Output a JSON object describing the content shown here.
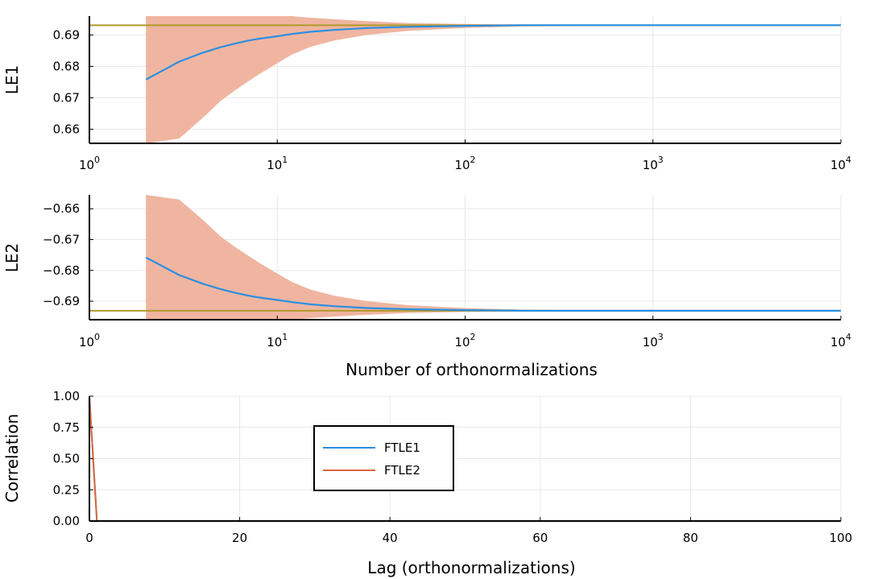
{
  "colors": {
    "mean_line": "#2a8fe3",
    "band": "#efb5a0",
    "reference": "#b09a2a",
    "ftle1": "#2a8fe3",
    "ftle2": "#d9683c",
    "grid": "#e8e8e8",
    "axis": "#000000"
  },
  "chart_data": [
    {
      "id": "le1",
      "type": "line",
      "ylabel": "LE1",
      "xlabel": "",
      "xscale": "log10",
      "xlim": [
        1,
        10000
      ],
      "ylim": [
        0.6555,
        0.696
      ],
      "xtick_values": [
        1,
        10,
        100,
        1000,
        10000
      ],
      "xtick_labels": [
        {
          "base": "10",
          "exp": "0"
        },
        {
          "base": "10",
          "exp": "1"
        },
        {
          "base": "10",
          "exp": "2"
        },
        {
          "base": "10",
          "exp": "3"
        },
        {
          "base": "10",
          "exp": "4"
        }
      ],
      "ytick_values": [
        0.66,
        0.67,
        0.68,
        0.69
      ],
      "ytick_labels": [
        "0.66",
        "0.67",
        "0.68",
        "0.69"
      ],
      "reference_line": 0.6931,
      "mean_series": {
        "x": [
          2,
          3,
          4,
          5,
          6,
          7,
          8,
          10,
          12,
          15,
          20,
          30,
          50,
          100,
          200,
          400,
          1000,
          10000
        ],
        "y": [
          0.6758,
          0.6815,
          0.6843,
          0.6861,
          0.6873,
          0.6882,
          0.6888,
          0.6896,
          0.6903,
          0.691,
          0.6916,
          0.6922,
          0.6926,
          0.6929,
          0.6931,
          0.6931,
          0.6931,
          0.6931
        ]
      },
      "band_series": {
        "x": [
          2,
          3,
          4,
          5,
          6,
          7,
          8,
          10,
          12,
          15,
          20,
          30,
          50,
          100,
          200,
          400,
          1000,
          10000
        ],
        "lower": [
          0.6555,
          0.657,
          0.6635,
          0.669,
          0.6725,
          0.6752,
          0.6775,
          0.681,
          0.6838,
          0.6862,
          0.6882,
          0.69,
          0.6913,
          0.6922,
          0.6927,
          0.6929,
          0.693,
          0.6931
        ],
        "upper": [
          0.696,
          0.696,
          0.696,
          0.696,
          0.696,
          0.696,
          0.696,
          0.696,
          0.696,
          0.6955,
          0.695,
          0.6944,
          0.6938,
          0.6935,
          0.6933,
          0.6932,
          0.6931,
          0.6931
        ]
      },
      "grid": true,
      "legend": "none"
    },
    {
      "id": "le2",
      "type": "line",
      "ylabel": "LE2",
      "xlabel": "Number of orthonormalizations",
      "xscale": "log10",
      "xlim": [
        1,
        10000
      ],
      "ylim": [
        -0.696,
        -0.6555
      ],
      "xtick_values": [
        1,
        10,
        100,
        1000,
        10000
      ],
      "xtick_labels": [
        {
          "base": "10",
          "exp": "0"
        },
        {
          "base": "10",
          "exp": "1"
        },
        {
          "base": "10",
          "exp": "2"
        },
        {
          "base": "10",
          "exp": "3"
        },
        {
          "base": "10",
          "exp": "4"
        }
      ],
      "ytick_values": [
        -0.66,
        -0.67,
        -0.68,
        -0.69
      ],
      "ytick_labels": [
        "−0.66",
        "−0.67",
        "−0.68",
        "−0.69"
      ],
      "reference_line": -0.6931,
      "mean_series": {
        "x": [
          2,
          3,
          4,
          5,
          6,
          7,
          8,
          10,
          12,
          15,
          20,
          30,
          50,
          100,
          200,
          400,
          1000,
          10000
        ],
        "y": [
          -0.6758,
          -0.6815,
          -0.6843,
          -0.6861,
          -0.6873,
          -0.6882,
          -0.6888,
          -0.6896,
          -0.6903,
          -0.691,
          -0.6916,
          -0.6922,
          -0.6926,
          -0.6929,
          -0.6931,
          -0.6931,
          -0.6931,
          -0.6931
        ]
      },
      "band_series": {
        "x": [
          2,
          3,
          4,
          5,
          6,
          7,
          8,
          10,
          12,
          15,
          20,
          30,
          50,
          100,
          200,
          400,
          1000,
          10000
        ],
        "lower": [
          -0.696,
          -0.696,
          -0.696,
          -0.696,
          -0.696,
          -0.696,
          -0.696,
          -0.696,
          -0.696,
          -0.6955,
          -0.695,
          -0.6944,
          -0.6938,
          -0.6935,
          -0.6933,
          -0.6932,
          -0.6931,
          -0.6931
        ],
        "upper": [
          -0.6555,
          -0.657,
          -0.6635,
          -0.669,
          -0.6725,
          -0.6752,
          -0.6775,
          -0.681,
          -0.6838,
          -0.6862,
          -0.6882,
          -0.69,
          -0.6913,
          -0.6922,
          -0.6927,
          -0.6929,
          -0.693,
          -0.6931
        ]
      },
      "grid": true,
      "legend": "none"
    },
    {
      "id": "corr",
      "type": "line",
      "ylabel": "Correlation",
      "xlabel": "Lag (orthonormalizations)",
      "xscale": "linear",
      "xlim": [
        0,
        100
      ],
      "ylim": [
        0,
        1
      ],
      "xtick_values": [
        0,
        20,
        40,
        60,
        80,
        100
      ],
      "xtick_labels": [
        "0",
        "20",
        "40",
        "60",
        "80",
        "100"
      ],
      "ytick_values": [
        0,
        0.25,
        0.5,
        0.75,
        1
      ],
      "ytick_labels": [
        "0.00",
        "0.25",
        "0.50",
        "0.75",
        "1.00"
      ],
      "series": [
        {
          "name": "FTLE1",
          "color_key": "ftle1",
          "x": [
            0,
            1,
            2,
            5,
            10,
            20,
            40,
            60,
            80,
            100
          ],
          "y": [
            1,
            0,
            0,
            0,
            0,
            0,
            0,
            0,
            0,
            0
          ]
        },
        {
          "name": "FTLE2",
          "color_key": "ftle2",
          "x": [
            0,
            1,
            2,
            5,
            10,
            20,
            40,
            60,
            80,
            100
          ],
          "y": [
            1,
            0,
            0,
            0,
            0,
            0,
            0,
            0,
            0,
            0
          ]
        }
      ],
      "grid": true,
      "legend": "upper-center-left"
    }
  ]
}
